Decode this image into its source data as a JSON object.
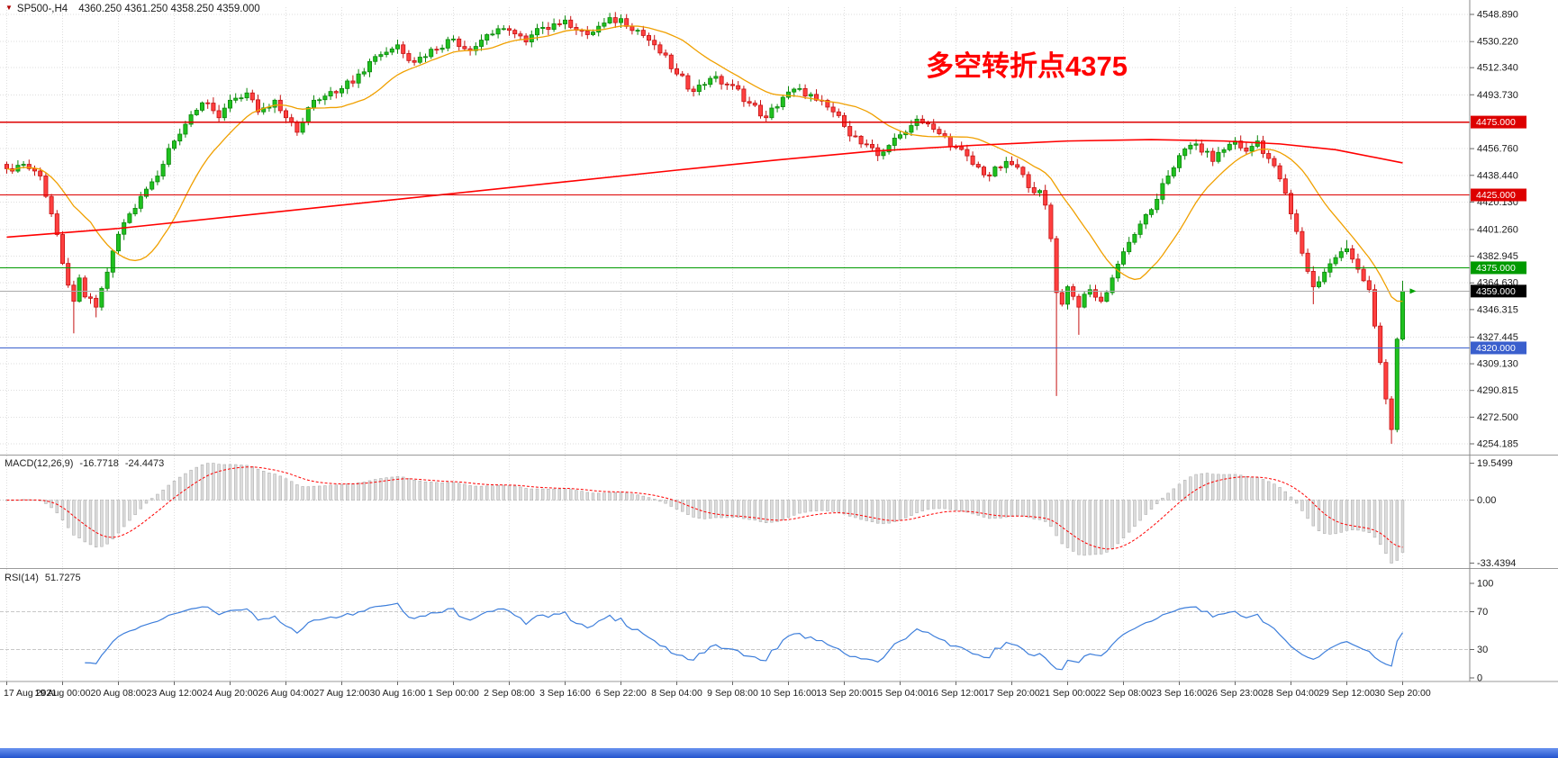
{
  "header": {
    "symbol": "SP500-,H4",
    "ohlc": "4360.250 4361.250 4358.250 4359.000"
  },
  "annotation": {
    "text": "多空转折点4375",
    "color": "#ff0000"
  },
  "chart_data": {
    "type": "candlestick",
    "instrument": "SP500-",
    "timeframe": "H4",
    "grid": true,
    "ylim": [
      4254.185,
      4548.89
    ],
    "x_labels": [
      "17 Aug 2021",
      "19 Aug 00:00",
      "20 Aug 08:00",
      "23 Aug 12:00",
      "24 Aug 20:00",
      "26 Aug 04:00",
      "27 Aug 12:00",
      "30 Aug 16:00",
      "1 Sep 00:00",
      "2 Sep 08:00",
      "3 Sep 16:00",
      "6 Sep 22:00",
      "8 Sep 04:00",
      "9 Sep 08:00",
      "10 Sep 16:00",
      "13 Sep 20:00",
      "15 Sep 04:00",
      "16 Sep 12:00",
      "17 Sep 20:00",
      "21 Sep 00:00",
      "22 Sep 08:00",
      "23 Sep 16:00",
      "26 Sep 23:00",
      "28 Sep 04:00",
      "29 Sep 12:00",
      "30 Sep 20:00"
    ],
    "y_axis_labels": [
      "4548.890",
      "4530.220",
      "4512.340",
      "4493.730",
      "4456.760",
      "4438.440",
      "4420.130",
      "4401.260",
      "4382.945",
      "4364.630",
      "4346.315",
      "4327.445",
      "4309.130",
      "4290.815",
      "4272.500",
      "4254.185"
    ],
    "price_levels": [
      {
        "label": "4475.000",
        "price": 4475.0,
        "color": "#dd0000"
      },
      {
        "label": "4425.000",
        "price": 4425.0,
        "color": "#dd0000"
      },
      {
        "label": "4375.000",
        "price": 4375.0,
        "color": "#009a00"
      },
      {
        "label": "4320.000",
        "price": 4320.0,
        "color": "#3a5fcd"
      }
    ],
    "current_price": {
      "label": "4359.000",
      "price": 4359.0,
      "box_color": "#000000",
      "marker_color": "#00a000"
    },
    "candles": {
      "count": 251,
      "noise": 3,
      "close_anchors": [
        [
          0,
          4443
        ],
        [
          3,
          4446
        ],
        [
          6,
          4438
        ],
        [
          8,
          4412
        ],
        [
          10,
          4378
        ],
        [
          12,
          4352
        ],
        [
          13,
          4368
        ],
        [
          14,
          4355
        ],
        [
          16,
          4348
        ],
        [
          18,
          4372
        ],
        [
          20,
          4398
        ],
        [
          22,
          4412
        ],
        [
          24,
          4424
        ],
        [
          26,
          4434
        ],
        [
          28,
          4446
        ],
        [
          30,
          4462
        ],
        [
          33,
          4480
        ],
        [
          36,
          4488
        ],
        [
          38,
          4478
        ],
        [
          40,
          4490
        ],
        [
          43,
          4495
        ],
        [
          45,
          4482
        ],
        [
          48,
          4490
        ],
        [
          50,
          4478
        ],
        [
          52,
          4468
        ],
        [
          55,
          4490
        ],
        [
          58,
          4496
        ],
        [
          60,
          4498
        ],
        [
          63,
          4508
        ],
        [
          66,
          4520
        ],
        [
          70,
          4528
        ],
        [
          73,
          4516
        ],
        [
          76,
          4525
        ],
        [
          80,
          4532
        ],
        [
          83,
          4524
        ],
        [
          86,
          4535
        ],
        [
          90,
          4538
        ],
        [
          93,
          4530
        ],
        [
          96,
          4540
        ],
        [
          100,
          4545
        ],
        [
          104,
          4535
        ],
        [
          107,
          4543
        ],
        [
          110,
          4546
        ],
        [
          113,
          4538
        ],
        [
          116,
          4528
        ],
        [
          120,
          4508
        ],
        [
          123,
          4496
        ],
        [
          126,
          4505
        ],
        [
          130,
          4500
        ],
        [
          133,
          4488
        ],
        [
          136,
          4478
        ],
        [
          139,
          4492
        ],
        [
          142,
          4498
        ],
        [
          145,
          4490
        ],
        [
          148,
          4482
        ],
        [
          150,
          4472
        ],
        [
          153,
          4460
        ],
        [
          156,
          4452
        ],
        [
          159,
          4464
        ],
        [
          161,
          4468
        ],
        [
          163,
          4477
        ],
        [
          166,
          4470
        ],
        [
          170,
          4458
        ],
        [
          173,
          4446
        ],
        [
          176,
          4438
        ],
        [
          179,
          4448
        ],
        [
          181,
          4444
        ],
        [
          183,
          4430
        ],
        [
          185,
          4428
        ],
        [
          186,
          4418
        ],
        [
          187,
          4395
        ],
        [
          188,
          4358
        ],
        [
          189,
          4350
        ],
        [
          190,
          4362
        ],
        [
          192,
          4348
        ],
        [
          194,
          4360
        ],
        [
          196,
          4352
        ],
        [
          198,
          4368
        ],
        [
          200,
          4386
        ],
        [
          203,
          4405
        ],
        [
          206,
          4422
        ],
        [
          208,
          4438
        ],
        [
          210,
          4452
        ],
        [
          213,
          4460
        ],
        [
          216,
          4448
        ],
        [
          218,
          4456
        ],
        [
          220,
          4462
        ],
        [
          222,
          4455
        ],
        [
          224,
          4462
        ],
        [
          226,
          4450
        ],
        [
          228,
          4436
        ],
        [
          230,
          4412
        ],
        [
          232,
          4385
        ],
        [
          234,
          4362
        ],
        [
          236,
          4372
        ],
        [
          238,
          4382
        ],
        [
          240,
          4388
        ],
        [
          242,
          4374
        ],
        [
          244,
          4360
        ],
        [
          245,
          4335
        ],
        [
          246,
          4310
        ],
        [
          247,
          4285
        ],
        [
          248,
          4264
        ],
        [
          249,
          4326
        ],
        [
          250,
          4359
        ]
      ],
      "wick_overrides": [
        {
          "i": 12,
          "low": 4330
        },
        {
          "i": 16,
          "low": 4341
        },
        {
          "i": 110,
          "high": 4548.9
        },
        {
          "i": 188,
          "low": 4287
        },
        {
          "i": 192,
          "low": 4329
        },
        {
          "i": 234,
          "low": 4350
        },
        {
          "i": 240,
          "high": 4394
        },
        {
          "i": 248,
          "low": 4254.2
        },
        {
          "i": 250,
          "high": 4366
        }
      ]
    },
    "ma_fast": {
      "period": 16
    },
    "ma_slow": {
      "points": [
        [
          0,
          4396
        ],
        [
          0.08,
          4402
        ],
        [
          0.16,
          4410
        ],
        [
          0.24,
          4418
        ],
        [
          0.32,
          4426
        ],
        [
          0.4,
          4434
        ],
        [
          0.48,
          4442
        ],
        [
          0.55,
          4449
        ],
        [
          0.62,
          4455
        ],
        [
          0.69,
          4459
        ],
        [
          0.76,
          4462
        ],
        [
          0.82,
          4463
        ],
        [
          0.87,
          4462
        ],
        [
          0.91,
          4460
        ],
        [
          0.95,
          4456
        ],
        [
          1,
          4447
        ]
      ]
    },
    "macd": {
      "title": "MACD(12,26,9)",
      "value_main": "-16.7718",
      "value_signal": "-24.4473",
      "axis_labels": [
        "19.5499",
        "0.00",
        "-33.4394"
      ],
      "axis_values": [
        19.5499,
        0,
        -33.4394
      ]
    },
    "rsi": {
      "title": "RSI(14)",
      "value": "51.7275",
      "period": 14,
      "axis_labels": [
        "100",
        "70",
        "30",
        "0"
      ],
      "levels": [
        70,
        30
      ]
    },
    "colors": {
      "up": "#1fc11f",
      "up_border": "#0c870c",
      "down": "#ff4040",
      "down_border": "#c51212",
      "ma_fast": "#f0a000",
      "ma_slow": "#ff0000",
      "macd_hist": "#dcdcdc",
      "macd_hist_border": "#b0b0b0",
      "macd_signal": "#ff0000",
      "rsi": "#3d7edb",
      "grid": "#dedede",
      "axis_text": "#1a1a1a",
      "separator": "#9a9a9a"
    }
  }
}
